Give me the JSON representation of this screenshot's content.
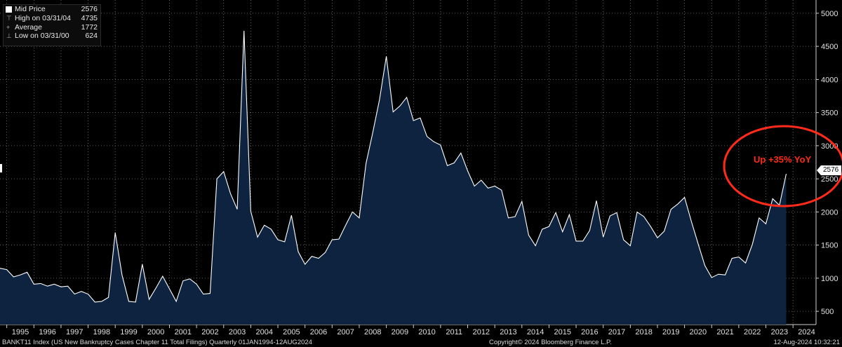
{
  "legend": {
    "mid_label": "Mid Price",
    "mid_value": "2576",
    "high_label": "High on 03/31/04",
    "high_value": "4735",
    "avg_label": "Average",
    "avg_value": "1772",
    "low_label": "Low on 03/31/00",
    "low_value": "624"
  },
  "annotation": "Up +35% YoY",
  "last_value_label": "2576",
  "footer": {
    "left": "BANKT11 Index (US New Bankruptcy Cases Chapter 11 Total Filings)  Quarterly 01JAN1994-12AUG2024",
    "center": "Copyright© 2024 Bloomberg Finance L.P.",
    "right": "12-Aug-2024 10:32:21"
  },
  "colors": {
    "background": "#000000",
    "area_fill": "#0d2340",
    "line": "#ffffff",
    "annotation": "#ff2a1a",
    "grid": "#7a7a7a"
  },
  "chart_data": {
    "type": "area",
    "x_start": 1994.75,
    "x_step": 0.25,
    "xlim": [
      1994.75,
      2024.85
    ],
    "ylim": [
      300,
      5200
    ],
    "y_ticks": [
      500,
      1000,
      1500,
      2000,
      2500,
      3000,
      3500,
      4000,
      4500,
      5000
    ],
    "y_tick_labels": [
      "500",
      "1000",
      "1500",
      "2000",
      "2500",
      "3000",
      "3500",
      "4000",
      "4500",
      "5000"
    ],
    "x_tick_labels": [
      "1995",
      "1996",
      "1997",
      "1998",
      "1999",
      "2000",
      "2001",
      "2002",
      "2003",
      "2004",
      "2005",
      "2006",
      "2007",
      "2008",
      "2009",
      "2010",
      "2011",
      "2012",
      "2013",
      "2014",
      "2015",
      "2016",
      "2017",
      "2018",
      "2019",
      "2020",
      "2021",
      "2022",
      "2023",
      "2024"
    ],
    "grid": true,
    "series": [
      {
        "name": "Mid Price",
        "values": [
          1150,
          1130,
          1020,
          1050,
          1090,
          910,
          920,
          880,
          910,
          870,
          880,
          760,
          800,
          760,
          640,
          650,
          710,
          1690,
          1050,
          650,
          640,
          1210,
          680,
          850,
          1030,
          840,
          650,
          960,
          990,
          910,
          760,
          770,
          2500,
          2610,
          2280,
          2040,
          4735,
          2010,
          1620,
          1800,
          1740,
          1580,
          1550,
          1950,
          1400,
          1210,
          1330,
          1300,
          1390,
          1580,
          1590,
          1800,
          2000,
          1910,
          2730,
          3200,
          3700,
          4350,
          3510,
          3600,
          3730,
          3380,
          3420,
          3140,
          3060,
          3010,
          2700,
          2740,
          2890,
          2620,
          2390,
          2480,
          2360,
          2390,
          2330,
          1910,
          1930,
          2160,
          1650,
          1490,
          1740,
          1780,
          1990,
          1700,
          1960,
          1560,
          1560,
          1720,
          2170,
          1620,
          1940,
          1990,
          1580,
          1490,
          2000,
          1930,
          1780,
          1610,
          1710,
          2040,
          2120,
          2220,
          1860,
          1520,
          1190,
          1010,
          1060,
          1050,
          1300,
          1320,
          1230,
          1510,
          1910,
          1820,
          2200,
          2100,
          2576
        ]
      }
    ]
  }
}
